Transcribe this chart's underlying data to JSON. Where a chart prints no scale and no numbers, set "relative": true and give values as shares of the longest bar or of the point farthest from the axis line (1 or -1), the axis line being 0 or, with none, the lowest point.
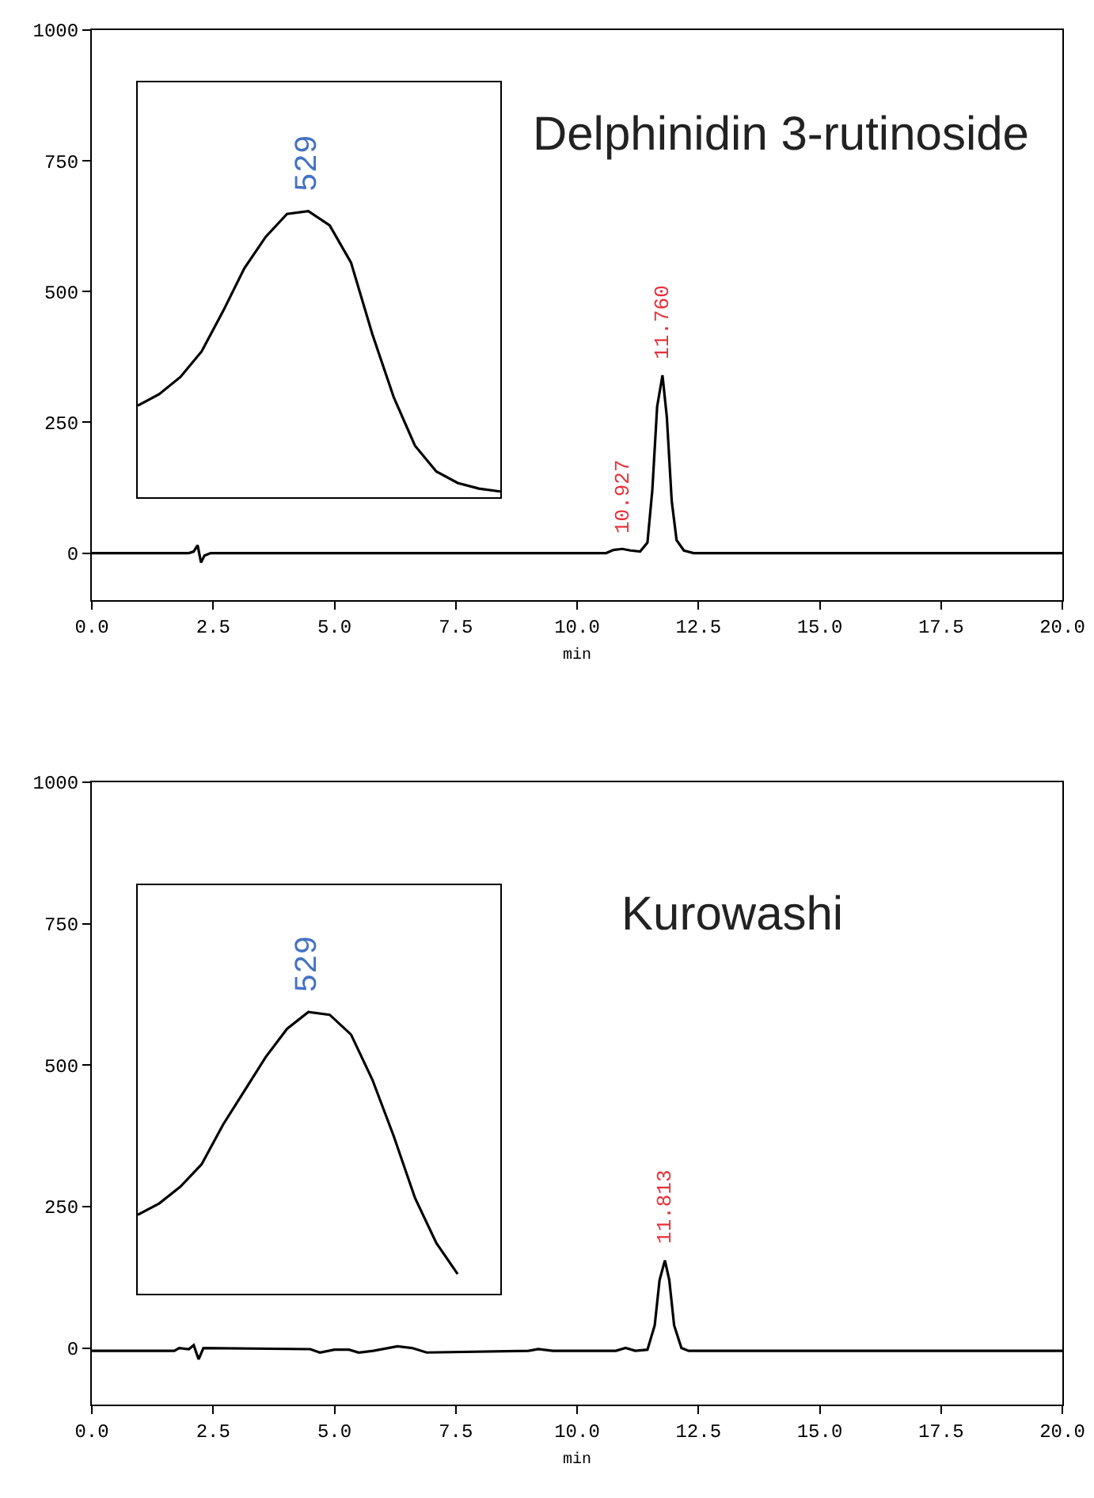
{
  "chart_data": [
    {
      "type": "line",
      "title": "Delphinidin 3-rutinoside",
      "xlabel": "min",
      "xlim": [
        0,
        20
      ],
      "ylim": [
        -90,
        1000
      ],
      "xticks": [
        {
          "value": 0,
          "label": "0.0"
        },
        {
          "value": 2.5,
          "label": "2.5"
        },
        {
          "value": 5,
          "label": "5.0"
        },
        {
          "value": 7.5,
          "label": "7.5"
        },
        {
          "value": 10,
          "label": "10.0"
        },
        {
          "value": 12.5,
          "label": "12.5"
        },
        {
          "value": 15,
          "label": "15.0"
        },
        {
          "value": 17.5,
          "label": "17.5"
        },
        {
          "value": 20,
          "label": "20.0"
        }
      ],
      "yticks": [
        0,
        250,
        500,
        750,
        1000
      ],
      "series": [
        {
          "color": "#000000",
          "x": [
            0,
            2.0,
            2.1,
            2.18,
            2.25,
            2.32,
            2.45,
            2.6,
            10.6,
            10.75,
            10.93,
            11.1,
            11.3,
            11.45,
            11.55,
            11.65,
            11.76,
            11.85,
            11.95,
            12.05,
            12.2,
            12.4,
            20
          ],
          "values": [
            0,
            0,
            3,
            15,
            -18,
            -5,
            0,
            0,
            0,
            6,
            8,
            5,
            3,
            20,
            120,
            280,
            340,
            260,
            100,
            25,
            5,
            0,
            0
          ]
        }
      ],
      "annotations": [
        {
          "text": "10.927",
          "x": 10.927,
          "y": 8
        },
        {
          "text": "11.760",
          "x": 11.76,
          "y": 340
        }
      ]
    },
    {
      "type": "line",
      "relative": true,
      "categories": [
        null,
        null,
        null,
        null,
        null,
        null,
        null,
        null,
        null,
        null,
        null,
        null,
        null,
        null,
        null,
        null,
        null,
        null
      ],
      "series": [
        {
          "color": "#000000",
          "values": [
            0.32,
            0.36,
            0.42,
            0.51,
            0.65,
            0.8,
            0.91,
            0.99,
            1,
            0.95,
            0.82,
            0.57,
            0.35,
            0.18,
            0.09,
            0.05,
            0.03,
            0.02
          ]
        }
      ],
      "annotations": [
        "529"
      ]
    },
    {
      "type": "line",
      "title": "Kurowashi",
      "xlabel": "min",
      "xlim": [
        0,
        20
      ],
      "ylim": [
        -100,
        1000
      ],
      "xticks": [
        {
          "value": 0,
          "label": "0.0"
        },
        {
          "value": 2.5,
          "label": "2.5"
        },
        {
          "value": 5,
          "label": "5.0"
        },
        {
          "value": 7.5,
          "label": "7.5"
        },
        {
          "value": 10,
          "label": "10.0"
        },
        {
          "value": 12.5,
          "label": "12.5"
        },
        {
          "value": 15,
          "label": "15.0"
        },
        {
          "value": 17.5,
          "label": "17.5"
        },
        {
          "value": 20,
          "label": "20.0"
        }
      ],
      "yticks": [
        0,
        250,
        500,
        750,
        1000
      ],
      "series": [
        {
          "color": "#000000",
          "x": [
            0,
            1.7,
            1.8,
            2.0,
            2.1,
            2.2,
            2.3,
            4.5,
            4.7,
            5.0,
            5.3,
            5.5,
            5.8,
            6.3,
            6.6,
            6.9,
            9.0,
            9.2,
            9.5,
            10.8,
            11.0,
            11.2,
            11.45,
            11.6,
            11.7,
            11.81,
            11.9,
            12.0,
            12.15,
            12.3,
            20
          ],
          "values": [
            -5,
            -5,
            0,
            -2,
            5,
            -20,
            0,
            -2,
            -8,
            -3,
            -3,
            -8,
            -5,
            3,
            0,
            -8,
            -5,
            -2,
            -5,
            -5,
            0,
            -5,
            -3,
            40,
            120,
            155,
            120,
            40,
            0,
            -5,
            -5
          ]
        }
      ],
      "annotations": [
        {
          "text": "11.813",
          "x": 11.813,
          "y": 155
        }
      ]
    },
    {
      "type": "line",
      "relative": true,
      "categories": [
        null,
        null,
        null,
        null,
        null,
        null,
        null,
        null,
        null,
        null,
        null,
        null,
        null,
        null,
        null,
        null,
        null,
        null
      ],
      "series": [
        {
          "color": "#000000",
          "values": [
            0.28,
            0.32,
            0.38,
            0.46,
            0.6,
            0.72,
            0.84,
            0.94,
            1,
            0.99,
            0.92,
            0.76,
            0.56,
            0.34,
            0.18,
            0.07,
            null,
            null
          ]
        }
      ],
      "annotations": [
        "529"
      ]
    }
  ]
}
